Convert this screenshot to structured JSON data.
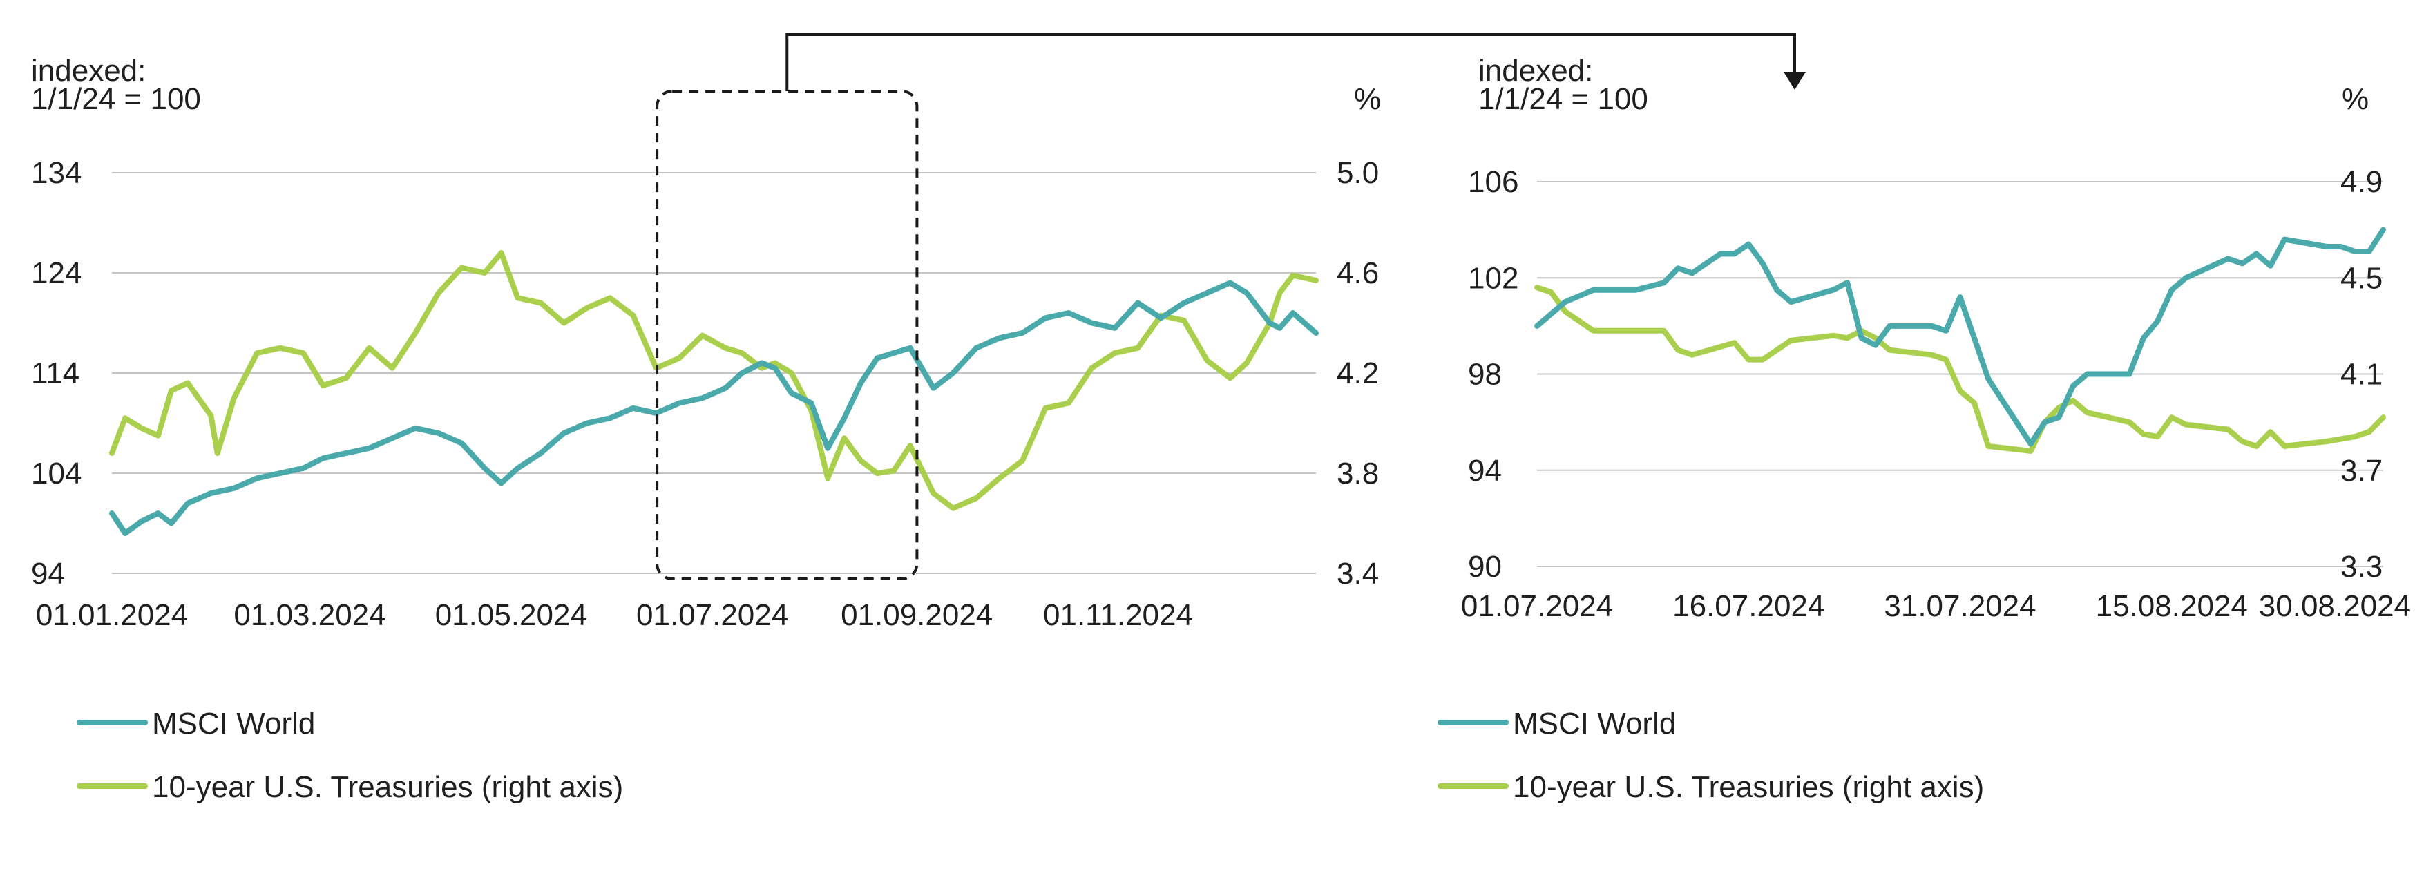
{
  "colors": {
    "msci": "#4aa9ab",
    "treasury": "#a9cf4c",
    "grid": "#c6c6c6",
    "text": "#1f1f1f"
  },
  "chart_data": [
    {
      "type": "line",
      "left_axis_label": "indexed:",
      "left_axis_label_2": "1/1/24 = 100",
      "right_axis_label": "%",
      "x_ticks": [
        "01.01.2024",
        "01.03.2024",
        "01.05.2024",
        "01.07.2024",
        "01.09.2024",
        "01.11.2024"
      ],
      "x_range": [
        "2024-01-01",
        "2024-12-31"
      ],
      "y_left": {
        "min": 94,
        "max": 134,
        "ticks": [
          94,
          104,
          114,
          124,
          134
        ]
      },
      "y_right": {
        "min": 3.4,
        "max": 5.0,
        "ticks": [
          "3.4",
          "3.8",
          "4.2",
          "4.6",
          "5.0"
        ]
      },
      "series": [
        {
          "name": "MSCI World",
          "axis": "left",
          "color_key": "msci",
          "points": [
            [
              "2024-01-01",
              100
            ],
            [
              "2024-01-05",
              98
            ],
            [
              "2024-01-10",
              99.2
            ],
            [
              "2024-01-15",
              100
            ],
            [
              "2024-01-19",
              99
            ],
            [
              "2024-01-24",
              101
            ],
            [
              "2024-01-31",
              102
            ],
            [
              "2024-02-07",
              102.5
            ],
            [
              "2024-02-14",
              103.5
            ],
            [
              "2024-02-21",
              104
            ],
            [
              "2024-02-28",
              104.5
            ],
            [
              "2024-03-05",
              105.5
            ],
            [
              "2024-03-12",
              106
            ],
            [
              "2024-03-19",
              106.5
            ],
            [
              "2024-03-26",
              107.5
            ],
            [
              "2024-04-02",
              108.5
            ],
            [
              "2024-04-09",
              108
            ],
            [
              "2024-04-16",
              107
            ],
            [
              "2024-04-23",
              104.5
            ],
            [
              "2024-04-28",
              103
            ],
            [
              "2024-05-03",
              104.5
            ],
            [
              "2024-05-10",
              106
            ],
            [
              "2024-05-17",
              108
            ],
            [
              "2024-05-24",
              109
            ],
            [
              "2024-05-31",
              109.5
            ],
            [
              "2024-06-07",
              110.5
            ],
            [
              "2024-06-14",
              110
            ],
            [
              "2024-06-21",
              111
            ],
            [
              "2024-06-28",
              111.5
            ],
            [
              "2024-07-05",
              112.5
            ],
            [
              "2024-07-10",
              114
            ],
            [
              "2024-07-16",
              115
            ],
            [
              "2024-07-20",
              114.5
            ],
            [
              "2024-07-25",
              112
            ],
            [
              "2024-07-31",
              111
            ],
            [
              "2024-08-05",
              106.5
            ],
            [
              "2024-08-10",
              109.5
            ],
            [
              "2024-08-15",
              113
            ],
            [
              "2024-08-20",
              115.5
            ],
            [
              "2024-08-25",
              116
            ],
            [
              "2024-08-30",
              116.5
            ],
            [
              "2024-09-06",
              112.5
            ],
            [
              "2024-09-12",
              114
            ],
            [
              "2024-09-19",
              116.5
            ],
            [
              "2024-09-26",
              117.5
            ],
            [
              "2024-10-03",
              118
            ],
            [
              "2024-10-10",
              119.5
            ],
            [
              "2024-10-17",
              120
            ],
            [
              "2024-10-24",
              119
            ],
            [
              "2024-10-31",
              118.5
            ],
            [
              "2024-11-07",
              121
            ],
            [
              "2024-11-14",
              119.5
            ],
            [
              "2024-11-21",
              121
            ],
            [
              "2024-11-28",
              122
            ],
            [
              "2024-12-05",
              123
            ],
            [
              "2024-12-10",
              122
            ],
            [
              "2024-12-17",
              119
            ],
            [
              "2024-12-20",
              118.5
            ],
            [
              "2024-12-24",
              120
            ],
            [
              "2024-12-31",
              118
            ]
          ]
        },
        {
          "name": "10-year U.S. Treasuries (right axis)",
          "axis": "right",
          "color_key": "treasury",
          "points": [
            [
              "2024-01-01",
              3.88
            ],
            [
              "2024-01-05",
              4.02
            ],
            [
              "2024-01-10",
              3.98
            ],
            [
              "2024-01-15",
              3.95
            ],
            [
              "2024-01-19",
              4.13
            ],
            [
              "2024-01-24",
              4.16
            ],
            [
              "2024-01-31",
              4.03
            ],
            [
              "2024-02-02",
              3.88
            ],
            [
              "2024-02-07",
              4.1
            ],
            [
              "2024-02-14",
              4.28
            ],
            [
              "2024-02-21",
              4.3
            ],
            [
              "2024-02-28",
              4.28
            ],
            [
              "2024-03-05",
              4.15
            ],
            [
              "2024-03-12",
              4.18
            ],
            [
              "2024-03-19",
              4.3
            ],
            [
              "2024-03-26",
              4.22
            ],
            [
              "2024-04-02",
              4.36
            ],
            [
              "2024-04-09",
              4.52
            ],
            [
              "2024-04-16",
              4.62
            ],
            [
              "2024-04-23",
              4.6
            ],
            [
              "2024-04-28",
              4.68
            ],
            [
              "2024-05-03",
              4.5
            ],
            [
              "2024-05-10",
              4.48
            ],
            [
              "2024-05-17",
              4.4
            ],
            [
              "2024-05-24",
              4.46
            ],
            [
              "2024-05-31",
              4.5
            ],
            [
              "2024-06-07",
              4.43
            ],
            [
              "2024-06-14",
              4.22
            ],
            [
              "2024-06-21",
              4.26
            ],
            [
              "2024-06-28",
              4.35
            ],
            [
              "2024-07-05",
              4.3
            ],
            [
              "2024-07-10",
              4.28
            ],
            [
              "2024-07-16",
              4.22
            ],
            [
              "2024-07-20",
              4.24
            ],
            [
              "2024-07-25",
              4.2
            ],
            [
              "2024-07-31",
              4.05
            ],
            [
              "2024-08-05",
              3.78
            ],
            [
              "2024-08-10",
              3.94
            ],
            [
              "2024-08-15",
              3.85
            ],
            [
              "2024-08-20",
              3.8
            ],
            [
              "2024-08-25",
              3.81
            ],
            [
              "2024-08-30",
              3.91
            ],
            [
              "2024-09-06",
              3.72
            ],
            [
              "2024-09-12",
              3.66
            ],
            [
              "2024-09-19",
              3.7
            ],
            [
              "2024-09-26",
              3.78
            ],
            [
              "2024-10-03",
              3.85
            ],
            [
              "2024-10-10",
              4.06
            ],
            [
              "2024-10-17",
              4.08
            ],
            [
              "2024-10-24",
              4.22
            ],
            [
              "2024-10-31",
              4.28
            ],
            [
              "2024-11-07",
              4.3
            ],
            [
              "2024-11-14",
              4.43
            ],
            [
              "2024-11-21",
              4.41
            ],
            [
              "2024-11-28",
              4.25
            ],
            [
              "2024-12-05",
              4.18
            ],
            [
              "2024-12-10",
              4.24
            ],
            [
              "2024-12-17",
              4.4
            ],
            [
              "2024-12-20",
              4.52
            ],
            [
              "2024-12-24",
              4.59
            ],
            [
              "2024-12-31",
              4.57
            ]
          ]
        }
      ],
      "legend": [
        "MSCI World",
        "10-year U.S. Treasuries (right axis)"
      ],
      "legend_position": "bottom-left",
      "grid": true,
      "highlight_range": [
        "2024-07-01",
        "2024-08-31"
      ]
    },
    {
      "type": "line",
      "left_axis_label": "indexed:",
      "left_axis_label_2": "1/1/24 = 100",
      "right_axis_label": "%",
      "x_ticks": [
        "01.07.2024",
        "16.07.2024",
        "31.07.2024",
        "15.08.2024",
        "30.08.2024"
      ],
      "x_range": [
        "2024-07-01",
        "2024-08-30"
      ],
      "y_left": {
        "min": 90,
        "max": 106,
        "ticks": [
          90,
          94,
          98,
          102,
          106
        ]
      },
      "y_right": {
        "min": 3.3,
        "max": 4.9,
        "ticks": [
          "3.3",
          "3.7",
          "4.1",
          "4.5",
          "4.9"
        ]
      },
      "series": [
        {
          "name": "MSCI World",
          "axis": "left",
          "color_key": "msci",
          "points": [
            [
              "2024-07-01",
              100
            ],
            [
              "2024-07-02",
              100.5
            ],
            [
              "2024-07-03",
              101
            ],
            [
              "2024-07-05",
              101.5
            ],
            [
              "2024-07-08",
              101.5
            ],
            [
              "2024-07-10",
              101.8
            ],
            [
              "2024-07-11",
              102.4
            ],
            [
              "2024-07-12",
              102.2
            ],
            [
              "2024-07-14",
              103
            ],
            [
              "2024-07-15",
              103
            ],
            [
              "2024-07-16",
              103.4
            ],
            [
              "2024-07-17",
              102.6
            ],
            [
              "2024-07-18",
              101.5
            ],
            [
              "2024-07-19",
              101
            ],
            [
              "2024-07-22",
              101.5
            ],
            [
              "2024-07-23",
              101.8
            ],
            [
              "2024-07-24",
              99.5
            ],
            [
              "2024-07-25",
              99.2
            ],
            [
              "2024-07-26",
              100
            ],
            [
              "2024-07-29",
              100
            ],
            [
              "2024-07-30",
              99.8
            ],
            [
              "2024-07-31",
              101.2
            ],
            [
              "2024-08-01",
              99.5
            ],
            [
              "2024-08-02",
              97.8
            ],
            [
              "2024-08-05",
              95.1
            ],
            [
              "2024-08-06",
              96
            ],
            [
              "2024-08-07",
              96.2
            ],
            [
              "2024-08-08",
              97.5
            ],
            [
              "2024-08-09",
              98
            ],
            [
              "2024-08-12",
              98
            ],
            [
              "2024-08-13",
              99.5
            ],
            [
              "2024-08-14",
              100.2
            ],
            [
              "2024-08-15",
              101.5
            ],
            [
              "2024-08-16",
              102
            ],
            [
              "2024-08-19",
              102.8
            ],
            [
              "2024-08-20",
              102.6
            ],
            [
              "2024-08-21",
              103
            ],
            [
              "2024-08-22",
              102.5
            ],
            [
              "2024-08-23",
              103.6
            ],
            [
              "2024-08-26",
              103.3
            ],
            [
              "2024-08-27",
              103.3
            ],
            [
              "2024-08-28",
              103.1
            ],
            [
              "2024-08-29",
              103.1
            ],
            [
              "2024-08-30",
              104
            ]
          ]
        },
        {
          "name": "10-year U.S. Treasuries (right axis)",
          "axis": "right",
          "color_key": "treasury",
          "points": [
            [
              "2024-07-01",
              4.46
            ],
            [
              "2024-07-02",
              4.44
            ],
            [
              "2024-07-03",
              4.36
            ],
            [
              "2024-07-05",
              4.28
            ],
            [
              "2024-07-08",
              4.28
            ],
            [
              "2024-07-10",
              4.28
            ],
            [
              "2024-07-11",
              4.2
            ],
            [
              "2024-07-12",
              4.18
            ],
            [
              "2024-07-15",
              4.23
            ],
            [
              "2024-07-16",
              4.16
            ],
            [
              "2024-07-17",
              4.16
            ],
            [
              "2024-07-18",
              4.2
            ],
            [
              "2024-07-19",
              4.24
            ],
            [
              "2024-07-22",
              4.26
            ],
            [
              "2024-07-23",
              4.25
            ],
            [
              "2024-07-24",
              4.28
            ],
            [
              "2024-07-25",
              4.25
            ],
            [
              "2024-07-26",
              4.2
            ],
            [
              "2024-07-29",
              4.18
            ],
            [
              "2024-07-30",
              4.16
            ],
            [
              "2024-07-31",
              4.03
            ],
            [
              "2024-08-01",
              3.98
            ],
            [
              "2024-08-02",
              3.8
            ],
            [
              "2024-08-05",
              3.78
            ],
            [
              "2024-08-06",
              3.9
            ],
            [
              "2024-08-07",
              3.96
            ],
            [
              "2024-08-08",
              3.99
            ],
            [
              "2024-08-09",
              3.94
            ],
            [
              "2024-08-12",
              3.9
            ],
            [
              "2024-08-13",
              3.85
            ],
            [
              "2024-08-14",
              3.84
            ],
            [
              "2024-08-15",
              3.92
            ],
            [
              "2024-08-16",
              3.89
            ],
            [
              "2024-08-19",
              3.87
            ],
            [
              "2024-08-20",
              3.82
            ],
            [
              "2024-08-21",
              3.8
            ],
            [
              "2024-08-22",
              3.86
            ],
            [
              "2024-08-23",
              3.8
            ],
            [
              "2024-08-26",
              3.82
            ],
            [
              "2024-08-27",
              3.83
            ],
            [
              "2024-08-28",
              3.84
            ],
            [
              "2024-08-29",
              3.86
            ],
            [
              "2024-08-30",
              3.92
            ]
          ]
        }
      ],
      "legend": [
        "MSCI World",
        "10-year U.S. Treasuries (right axis)"
      ],
      "legend_position": "bottom-left",
      "grid": true
    }
  ]
}
